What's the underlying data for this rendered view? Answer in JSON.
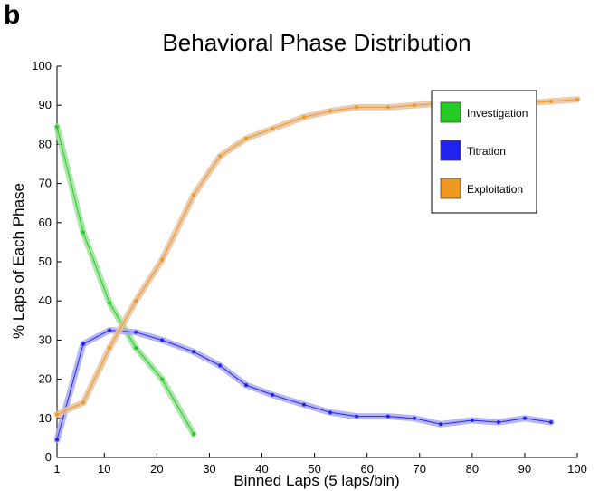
{
  "panel_label": "b",
  "chart_data": {
    "type": "line",
    "title": "Behavioral Phase Distribution",
    "xlabel": "Binned Laps (5 laps/bin)",
    "ylabel": "% Laps of Each Phase",
    "xlim": [
      1,
      100
    ],
    "ylim": [
      0,
      100
    ],
    "xticks": [
      1,
      10,
      20,
      30,
      40,
      50,
      60,
      70,
      80,
      90,
      100
    ],
    "yticks": [
      0,
      10,
      20,
      30,
      40,
      50,
      60,
      70,
      80,
      90,
      100
    ],
    "grid": false,
    "legend_position": "top-right",
    "series": [
      {
        "name": "Investigation",
        "color": "#22cc22",
        "band_color": "#9be09b",
        "x": [
          1,
          6,
          11,
          16,
          21,
          27
        ],
        "y": [
          84.5,
          57.5,
          39.5,
          28,
          20,
          6
        ]
      },
      {
        "name": "Titration",
        "color": "#2222ee",
        "band_color": "#a9a9ee",
        "x": [
          1,
          6,
          11,
          16,
          21,
          27,
          32,
          37,
          42,
          48,
          53,
          58,
          64,
          69,
          74,
          80,
          85,
          90,
          95
        ],
        "y": [
          4.5,
          29,
          32.5,
          32,
          30,
          27,
          23.5,
          18.5,
          16,
          13.5,
          11.5,
          10.5,
          10.5,
          10,
          8.5,
          9.5,
          9,
          10,
          9
        ]
      },
      {
        "name": "Exploitation",
        "color": "#ee9922",
        "band_color": "#e6c29f",
        "x": [
          1,
          6,
          11,
          16,
          21,
          27,
          32,
          37,
          42,
          48,
          53,
          58,
          64,
          69,
          74,
          80,
          85,
          90,
          95,
          100
        ],
        "y": [
          11,
          14,
          28,
          40,
          50.5,
          67,
          77,
          81.5,
          84,
          87,
          88.5,
          89.5,
          89.5,
          90,
          90.5,
          91,
          91,
          90.5,
          91,
          91.5
        ]
      }
    ]
  }
}
